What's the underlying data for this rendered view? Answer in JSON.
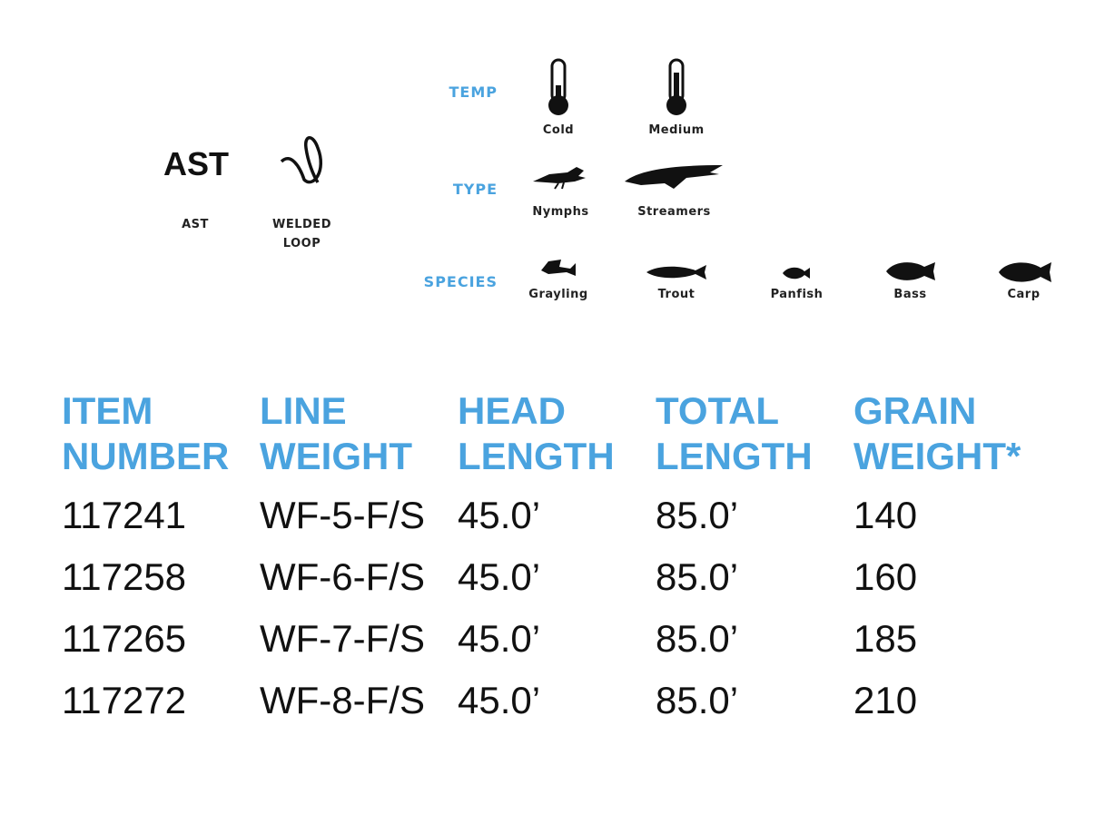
{
  "features": {
    "ast_logo": "AST",
    "ast_label": "AST",
    "loop_label_line1": "WELDED",
    "loop_label_line2": "LOOP"
  },
  "conditions": {
    "temp": {
      "label": "TEMP",
      "items": [
        "Cold",
        "Medium"
      ]
    },
    "type": {
      "label": "TYPE",
      "items": [
        "Nymphs",
        "Streamers"
      ]
    },
    "species": {
      "label": "SPECIES",
      "items": [
        "Grayling",
        "Trout",
        "Panfish",
        "Bass",
        "Carp"
      ]
    }
  },
  "table": {
    "headers": [
      [
        "ITEM",
        "NUMBER"
      ],
      [
        "LINE",
        "WEIGHT"
      ],
      [
        "HEAD",
        "LENGTH"
      ],
      [
        "TOTAL",
        "LENGTH"
      ],
      [
        "GRAIN",
        "WEIGHT*"
      ]
    ],
    "rows": [
      [
        "117241",
        "WF-5-F/S",
        "45.0’",
        "85.0’",
        "140"
      ],
      [
        "117258",
        "WF-6-F/S",
        "45.0’",
        "85.0’",
        "160"
      ],
      [
        "117265",
        "WF-7-F/S",
        "45.0’",
        "85.0’",
        "185"
      ],
      [
        "117272",
        "WF-8-F/S",
        "45.0’",
        "85.0’",
        "210"
      ]
    ]
  },
  "colors": {
    "accent": "#4aa3df",
    "text": "#111111"
  }
}
